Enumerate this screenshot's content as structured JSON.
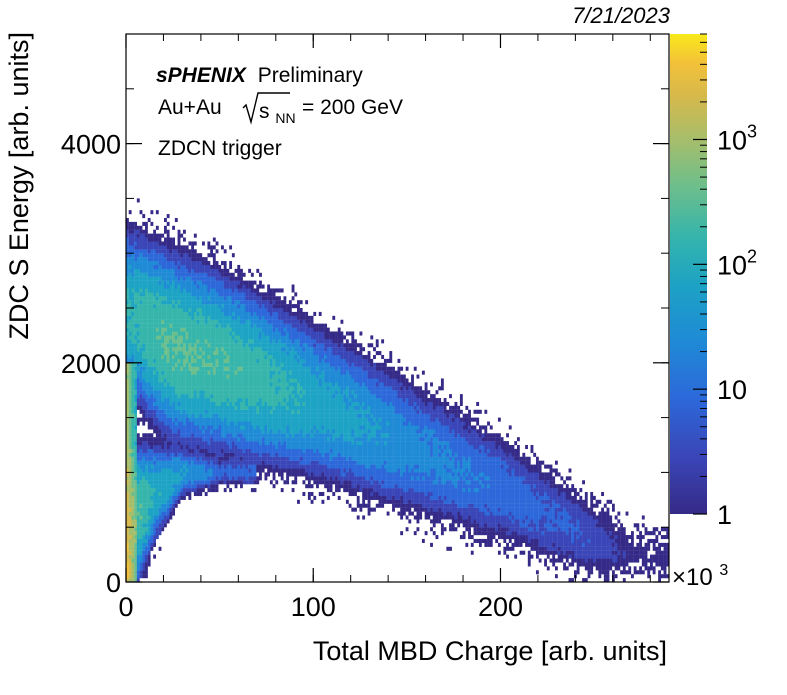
{
  "chart_data": {
    "type": "heatmap",
    "date": "7/21/2023",
    "title": "",
    "xlabel": "Total MBD Charge [arb. units]",
    "ylabel": "ZDC S Energy  [arb. units]",
    "x_multiplier_label": "×10",
    "x_multiplier_exp": "3",
    "xlim": [
      0,
      290000
    ],
    "ylim": [
      0,
      5000
    ],
    "x_ticks": [
      {
        "value": 0,
        "label": "0"
      },
      {
        "value": 100000,
        "label": "100"
      },
      {
        "value": 200000,
        "label": "200"
      }
    ],
    "y_ticks": [
      {
        "value": 0,
        "label": "0"
      },
      {
        "value": 2000,
        "label": "2000"
      },
      {
        "value": 4000,
        "label": "4000"
      }
    ],
    "z_scale": "log",
    "zlim": [
      1,
      7000
    ],
    "z_ticks": [
      {
        "value": 1,
        "label": "1"
      },
      {
        "value": 10,
        "label": "10"
      },
      {
        "value": 100,
        "label": "10",
        "sup": "2"
      },
      {
        "value": 1000,
        "label": "10",
        "sup": "3"
      }
    ],
    "annotations": {
      "experiment": "sPHENIX",
      "status": "Preliminary",
      "system": "Au+Au",
      "sqrt_s": "s",
      "sqrt_s_sub": "NN",
      "energy": "= 200 GeV",
      "trigger": "ZDCN trigger"
    },
    "bands": [
      {
        "name": "upper-band",
        "x": [
          2000,
          25000,
          50000,
          100000,
          150000,
          200000,
          250000,
          270000
        ],
        "y_center": [
          2450,
          2150,
          2000,
          1650,
          1250,
          850,
          380,
          250
        ],
        "half_width": [
          500,
          520,
          500,
          460,
          430,
          380,
          300,
          250
        ],
        "peak_counts": [
          60,
          140,
          120,
          40,
          15,
          7,
          3,
          1
        ]
      },
      {
        "name": "lower-band",
        "x": [
          5000,
          15000,
          30000,
          50000
        ],
        "y_center": [
          600,
          800,
          1000,
          1000
        ],
        "half_width": [
          400,
          300,
          150,
          100
        ],
        "peak_counts": [
          150,
          50,
          25,
          5
        ]
      }
    ],
    "low_x_spike": {
      "x_max": 6000,
      "y_max": 2000,
      "peak_counts": 3000
    }
  },
  "colors": {
    "palette": [
      "#352a87",
      "#3a46b8",
      "#2c68d9",
      "#1f8ad6",
      "#1da3c4",
      "#36b5ab",
      "#6cbe8c",
      "#a6be6b",
      "#d6b94b",
      "#f3c139",
      "#f9e91a"
    ],
    "frame": "#000000",
    "background": "#ffffff"
  }
}
